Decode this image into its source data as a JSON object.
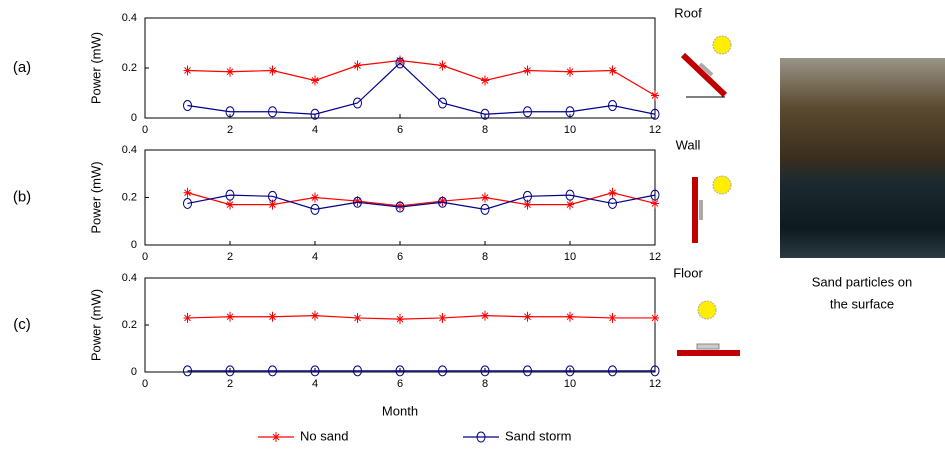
{
  "chart_data": [
    {
      "type": "line",
      "label": "(a)",
      "annotation": "Roof",
      "ylabel": "Power (mW)",
      "x": [
        1,
        2,
        3,
        4,
        5,
        6,
        7,
        8,
        9,
        10,
        11,
        12
      ],
      "xlim": [
        0,
        12
      ],
      "xticks": [
        0,
        2,
        4,
        6,
        8,
        10,
        12
      ],
      "ylim": [
        0,
        0.4
      ],
      "yticks": [
        0,
        0.2,
        0.4
      ],
      "series": [
        {
          "name": "No sand",
          "color": "#ff0000",
          "values": [
            0.19,
            0.185,
            0.19,
            0.15,
            0.21,
            0.23,
            0.21,
            0.15,
            0.19,
            0.185,
            0.19,
            0.09
          ]
        },
        {
          "name": "Sand storm",
          "color": "#00008b",
          "values": [
            0.05,
            0.025,
            0.025,
            0.015,
            0.06,
            0.22,
            0.06,
            0.015,
            0.025,
            0.025,
            0.05,
            0.015
          ]
        }
      ]
    },
    {
      "type": "line",
      "label": "(b)",
      "annotation": "Wall",
      "ylabel": "Power (mW)",
      "x": [
        1,
        2,
        3,
        4,
        5,
        6,
        7,
        8,
        9,
        10,
        11,
        12
      ],
      "xlim": [
        0,
        12
      ],
      "xticks": [
        0,
        2,
        4,
        6,
        8,
        10,
        12
      ],
      "ylim": [
        0,
        0.4
      ],
      "yticks": [
        0,
        0.2,
        0.4
      ],
      "series": [
        {
          "color": "#ff0000",
          "values": [
            0.22,
            0.17,
            0.17,
            0.2,
            0.185,
            0.165,
            0.185,
            0.2,
            0.17,
            0.17,
            0.22,
            0.175
          ]
        },
        {
          "color": "#00008b",
          "values": [
            0.175,
            0.21,
            0.205,
            0.15,
            0.18,
            0.16,
            0.18,
            0.15,
            0.205,
            0.21,
            0.175,
            0.21
          ]
        }
      ]
    },
    {
      "type": "line",
      "label": "(c)",
      "annotation": "Floor",
      "ylabel": "Power (mW)",
      "xlabel": "Month",
      "x": [
        1,
        2,
        3,
        4,
        5,
        6,
        7,
        8,
        9,
        10,
        11,
        12
      ],
      "xlim": [
        0,
        12
      ],
      "xticks": [
        0,
        2,
        4,
        6,
        8,
        10,
        12
      ],
      "ylim": [
        0,
        0.4
      ],
      "yticks": [
        0,
        0.2,
        0.4
      ],
      "series": [
        {
          "color": "#ff0000",
          "values": [
            0.23,
            0.235,
            0.235,
            0.24,
            0.23,
            0.225,
            0.23,
            0.24,
            0.235,
            0.235,
            0.23,
            0.23
          ]
        },
        {
          "color": "#00008b",
          "values": [
            0.005,
            0.005,
            0.005,
            0.005,
            0.005,
            0.005,
            0.005,
            0.005,
            0.005,
            0.005,
            0.005,
            0.005
          ]
        }
      ]
    }
  ],
  "image": {
    "caption": [
      "Sand particles on",
      "the surface"
    ]
  }
}
